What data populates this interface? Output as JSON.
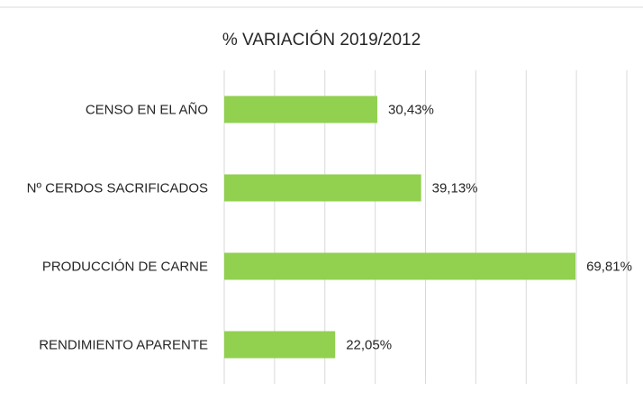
{
  "chart_data": {
    "type": "bar",
    "orientation": "horizontal",
    "title": "% VARIACIÓN 2019/2012",
    "categories": [
      "CENSO EN EL AÑO",
      "Nº CERDOS SACRIFICADOS",
      "PRODUCCIÓN DE CARNE",
      "RENDIMIENTO APARENTE"
    ],
    "values": [
      30.43,
      39.13,
      69.81,
      22.05
    ],
    "value_labels": [
      "30,43%",
      "39,13%",
      "69,81%",
      "22,05%"
    ],
    "color": "#92d050",
    "xlim": [
      0,
      80
    ],
    "xticks": [
      0,
      10,
      20,
      30,
      40,
      50,
      60,
      70,
      80
    ],
    "grid": true
  }
}
